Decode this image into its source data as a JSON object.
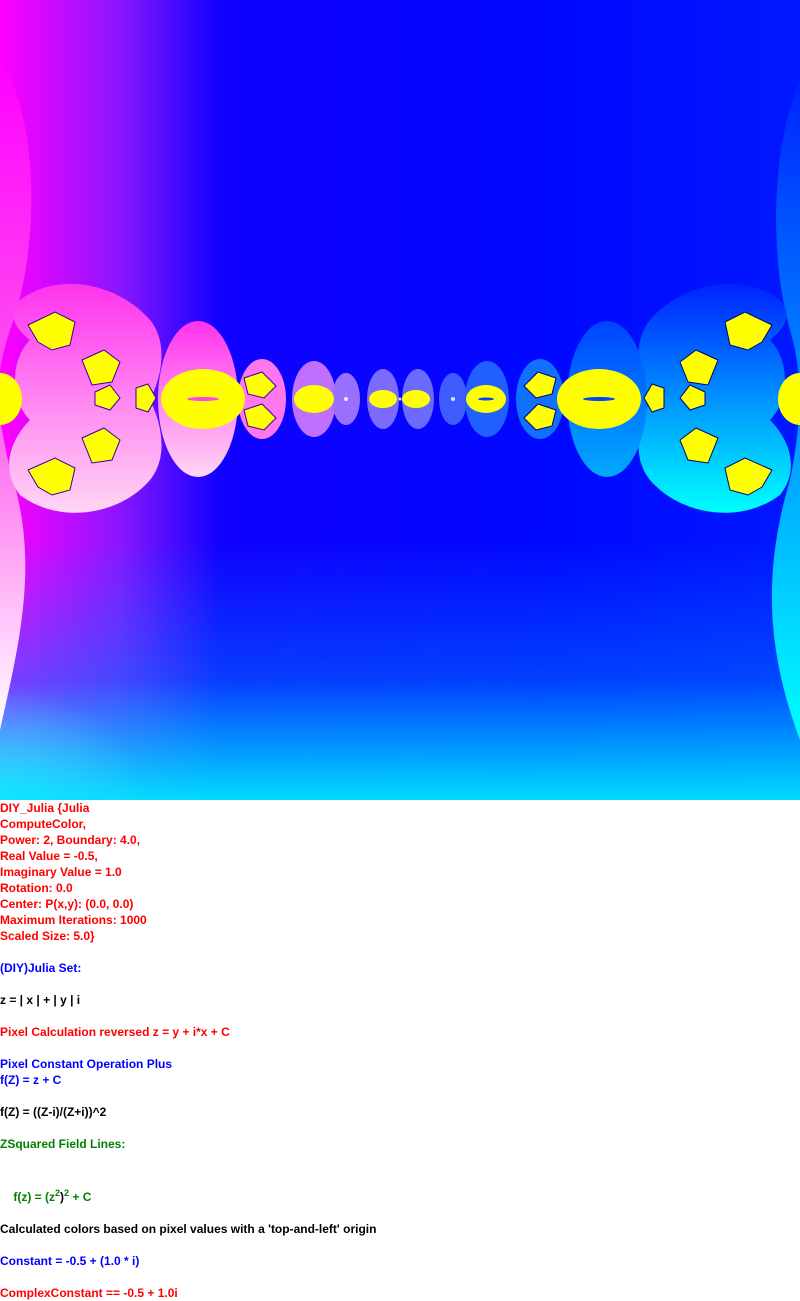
{
  "colors": {
    "magenta": "#ff00ff",
    "blue": "#0000ff",
    "cyan": "#00ffff",
    "yellow": "#ffff00",
    "red_text": "#ff0000",
    "green_text": "#008000"
  },
  "params": [
    "DIY_Julia {Julia",
    "ComputeColor,",
    "Power: 2, Boundary: 4.0,",
    "Real Value = -0.5,",
    "Imaginary Value = 1.0",
    "Rotation: 0.0",
    "Center: P(x,y): (0.0, 0.0)",
    "Maximum Iterations: 1000",
    "Scaled Size: 5.0}"
  ],
  "set_title": "(DIY)Julia Set:",
  "z_def": "z = | x | + | y | i",
  "pixel_calc": "Pixel Calculation reversed z = y + i*x + C",
  "pixel_const_op": "Pixel Constant Operation Plus",
  "fz_plus": "f(Z) = z + C",
  "fz_ratio": "f(Z) = ((Z-i)/(Z+i))^2",
  "field_lines": "ZSquared Field Lines:",
  "fz_sq": {
    "pre": "f(z) = (z",
    "exp1": "2",
    "mid": ")",
    "exp2": "2",
    "post": " + C"
  },
  "origin_note": "Calculated colors based on pixel values with a 'top-and-left' origin",
  "constant": "Constant = -0.5 + (1.0 * i)",
  "complex_constant": "ComplexConstant == -0.5 + 1.0i"
}
